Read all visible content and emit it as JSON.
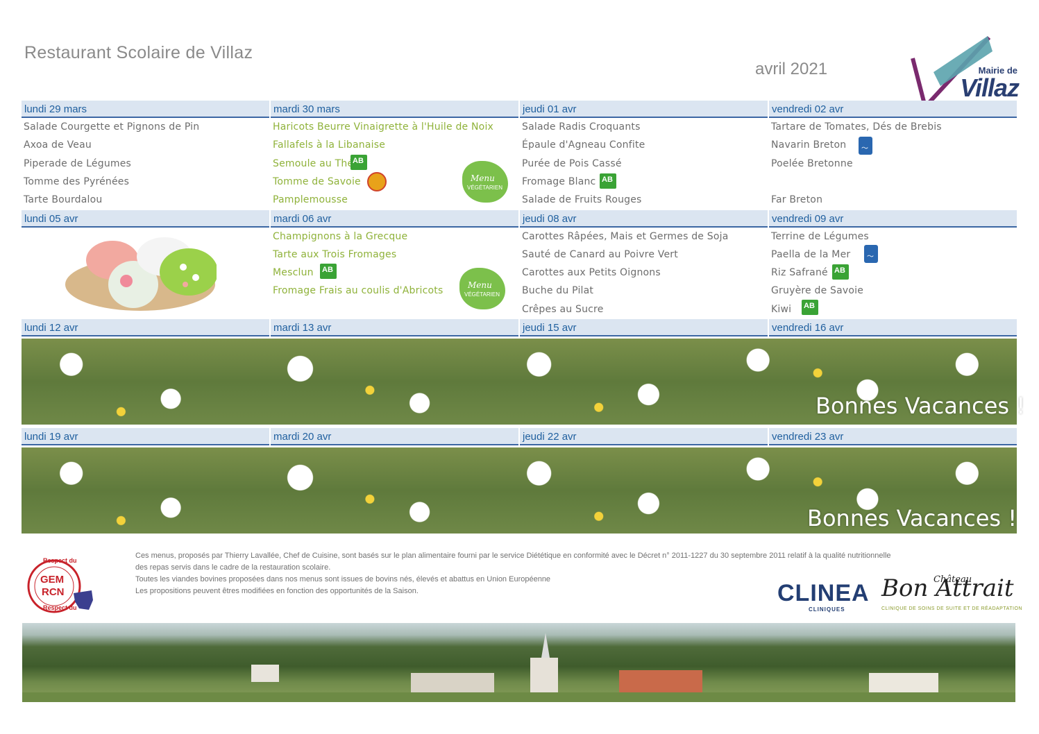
{
  "header": {
    "title": "Restaurant Scolaire de Villaz",
    "month": "avril 2021",
    "logo_line1": "Mairie de",
    "logo_line2": "Villaz"
  },
  "weeks": [
    {
      "days": [
        {
          "label": "lundi 29 mars",
          "items": [
            "Salade Courgette et Pignons de Pin",
            "Axoa de Veau",
            "Piperade de Légumes",
            "Tomme des Pyrénées",
            "Tarte Bourdalou"
          ]
        },
        {
          "label": "mardi 30 mars",
          "items": [
            "Haricots Beurre Vinaigrette à l'Huile de Noix",
            "Fallafels à la Libanaise",
            "Semoule au Thé",
            "Tomme de Savoie",
            "Pamplemousse"
          ]
        },
        {
          "label": "jeudi 01 avr",
          "items": [
            "Salade Radis Croquants",
            "Épaule d'Agneau Confite",
            "Purée de Pois Cassé",
            "Fromage Blanc",
            "Salade de Fruits Rouges"
          ]
        },
        {
          "label": "vendredi 02 avr",
          "items": [
            "Tartare de Tomates, Dés de Brebis",
            "Navarin Breton",
            "Poelée Bretonne",
            "",
            "Far Breton"
          ]
        }
      ]
    },
    {
      "days": [
        {
          "label": "lundi 05 avr",
          "items": []
        },
        {
          "label": "mardi 06 avr",
          "items": [
            "Champignons à la Grecque",
            "Tarte aux Trois Fromages",
            "Mesclun",
            "Fromage Frais au coulis d'Abricots"
          ]
        },
        {
          "label": "jeudi 08 avr",
          "items": [
            "Carottes Râpées, Mais et Germes de Soja",
            "Sauté de Canard au Poivre Vert",
            "Carottes aux Petits Oignons",
            "Buche du Pilat",
            "Crêpes au Sucre"
          ]
        },
        {
          "label": "vendredi 09 avr",
          "items": [
            "Terrine de Légumes",
            "Paella de la Mer",
            "Riz Safrané",
            "Gruyère de Savoie",
            "Kiwi"
          ]
        }
      ]
    },
    {
      "days": [
        {
          "label": "lundi 12 avr"
        },
        {
          "label": "mardi 13 avr"
        },
        {
          "label": "jeudi 15 avr"
        },
        {
          "label": "vendredi 16 avr"
        }
      ],
      "banner": "Bonnes Vacances !"
    },
    {
      "days": [
        {
          "label": "lundi 19 avr"
        },
        {
          "label": "mardi 20 avr"
        },
        {
          "label": "jeudi 22 avr"
        },
        {
          "label": "vendredi 23 avr"
        }
      ],
      "banner": "Bonnes Vacances !"
    }
  ],
  "badges": {
    "veg_line1": "Menu",
    "veg_line2": "VÉGÉTARIEN",
    "organic": "AB"
  },
  "footer": {
    "line1": "Ces menus, proposés par Thierry Lavallée, Chef de Cuisine, sont basés sur le plan alimentaire fourni par le service Diététique en conformité avec le Décret n° 2011-1227 du 30 septembre 2011 relatif à la qualité nutritionnelle",
    "line2": "des repas servis dans le cadre de la restauration scolaire.",
    "line3": "Toutes les viandes bovines proposées dans nos menus sont issues de bovins nés, élevés et abattus en Union Européenne",
    "line4": "Les propositions peuvent êtres modifiées en fonction des opportunités de la Saison.",
    "gem_top": "Respect du",
    "gem_mid1": "GEM",
    "gem_mid2": "RCN",
    "gem_bottom": "Respect du",
    "clinea": "CLINEA",
    "clinea_sub": "CLINIQUES",
    "chateau": "Bon Attrait",
    "chateau_small": "Château",
    "chateau_sub": "CLINIQUE DE SOINS DE SUITE ET DE RÉADAPTATION"
  },
  "colors": {
    "header_bg": "#dbe5f1",
    "header_text": "#1f5f9e",
    "vegetarian_green": "#8fb23a",
    "organic_green": "#3aa335"
  }
}
